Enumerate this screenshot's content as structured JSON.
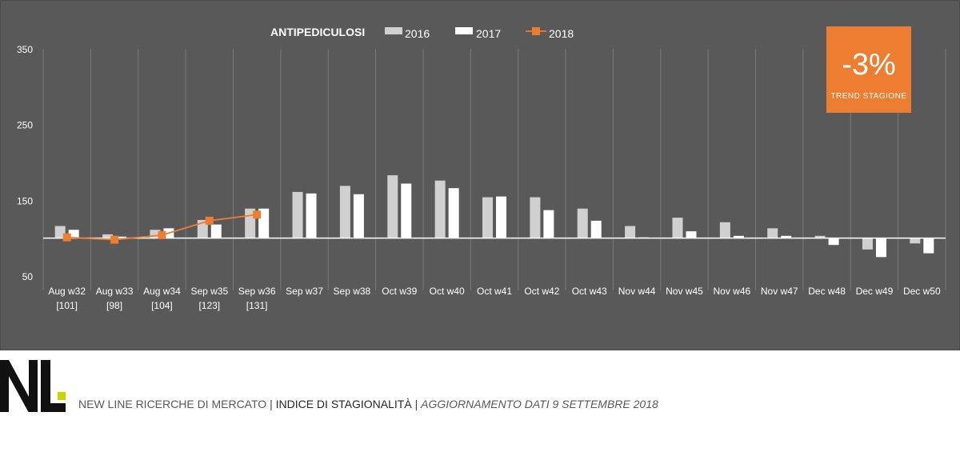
{
  "chart_data": {
    "type": "bar",
    "title": "ANTIPEDICULOSI",
    "categories": [
      "Aug w32",
      "Aug w33",
      "Aug w34",
      "Sep w35",
      "Sep w36",
      "Sep w37",
      "Sep w38",
      "Oct w39",
      "Oct w40",
      "Oct w41",
      "Oct w42",
      "Oct w43",
      "Nov w44",
      "Nov w45",
      "Nov w46",
      "Nov w47",
      "Dec w48",
      "Dec w49",
      "Dec w50"
    ],
    "category_sublabels": [
      "[101]",
      "[98]",
      "[104]",
      "[123]",
      "[131]",
      "",
      "",
      "",
      "",
      "",
      "",
      "",
      "",
      "",
      "",
      "",
      "",
      "",
      ""
    ],
    "baseline": 100,
    "ylim": [
      50,
      350
    ],
    "yticks": [
      50,
      150,
      250,
      350
    ],
    "grid": "vertical",
    "legend_position": "top",
    "series": [
      {
        "name": "2016",
        "type": "bar",
        "color": "#d0d0d0",
        "values": [
          116,
          105,
          111,
          124,
          139,
          161,
          169,
          183,
          176,
          154,
          154,
          139,
          116,
          127,
          121,
          113,
          103,
          85,
          93
        ]
      },
      {
        "name": "2017",
        "type": "bar",
        "color": "#ffffff",
        "values": [
          111,
          102,
          113,
          118,
          139,
          159,
          158,
          172,
          166,
          155,
          137,
          123,
          101,
          109,
          103,
          103,
          91,
          75,
          80
        ]
      },
      {
        "name": "2018",
        "type": "line",
        "color": "#ed7d31",
        "values": [
          101,
          98,
          104,
          123,
          131,
          null,
          null,
          null,
          null,
          null,
          null,
          null,
          null,
          null,
          null,
          null,
          null,
          null,
          null
        ]
      }
    ]
  },
  "trend": {
    "value": "-3%",
    "label": "TREND  STAGIONE"
  },
  "footer": {
    "company": "NEW LINE RICERCHE DI MERCATO",
    "separator": "|",
    "index": "INDICE DI STAGIONALITÀ",
    "update": "AGGIORNAMENTO DATI 9 SETTEMBRE 2018"
  },
  "logo": {
    "letters": "NL",
    "accent_color": "#c8d400"
  }
}
